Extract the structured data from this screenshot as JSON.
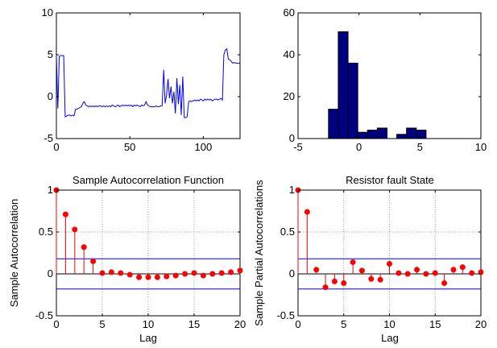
{
  "chart_data": [
    {
      "type": "line",
      "title": "",
      "xlabel": "",
      "ylabel": "",
      "xlim": [
        0,
        125
      ],
      "ylim": [
        -5,
        10
      ],
      "x_ticks": [
        "0",
        "50",
        "100"
      ],
      "y_ticks": [
        "-5",
        "0",
        "5",
        "10"
      ],
      "line_color": "#0000ff",
      "series": [
        {
          "x": [
            0,
            1,
            2,
            3,
            4,
            5,
            6,
            7,
            8,
            9,
            10,
            11,
            12,
            13,
            14,
            15,
            16,
            17,
            18,
            19,
            20,
            21,
            22,
            23,
            24,
            25,
            26,
            27,
            28,
            29,
            30,
            31,
            32,
            33,
            34,
            35,
            36,
            37,
            38,
            39,
            40,
            41,
            42,
            43,
            44,
            45,
            46,
            47,
            48,
            49,
            50,
            51,
            52,
            53,
            54,
            55,
            56,
            57,
            58,
            59,
            60,
            61,
            62,
            63,
            64,
            65,
            66,
            67,
            68,
            69,
            70,
            71,
            72,
            73,
            74,
            75,
            76,
            77,
            78,
            79,
            80,
            81,
            82,
            83,
            84,
            85,
            86,
            87,
            88,
            89,
            90,
            91,
            92,
            93,
            94,
            95,
            96,
            97,
            98,
            99,
            100,
            101,
            102,
            103,
            104,
            105,
            106,
            107,
            108,
            109,
            110,
            111,
            112,
            113,
            114,
            115,
            116,
            117,
            118,
            119,
            120,
            121,
            122,
            123,
            124,
            125
          ],
          "y": [
            5,
            -1.4,
            4.8,
            4.9,
            4.9,
            4.9,
            -2.4,
            -2.3,
            -2.2,
            -2.2,
            -2.3,
            -2.2,
            -2.3,
            -1.5,
            -1.5,
            -1.4,
            -1.3,
            -1.2,
            -0.8,
            -0.6,
            -1.0,
            -1.1,
            -1.2,
            -1.1,
            -1.2,
            -1.1,
            -1.2,
            -1.1,
            -1.2,
            -1.1,
            -1.1,
            -1.2,
            -1.1,
            -1.2,
            -1.1,
            -1.2,
            -1.1,
            -1.2,
            -1.0,
            -1.1,
            -1.2,
            -1.1,
            -1.0,
            -1.2,
            -1.1,
            -1.0,
            -1.1,
            -1.0,
            -1.1,
            -1.0,
            -1.1,
            -1.0,
            -1.2,
            -1.0,
            -1.1,
            -1.0,
            -1.1,
            -1.2,
            -1.0,
            -1.1,
            -1.0,
            -0.6,
            -1.0,
            -1.1,
            -1.2,
            -1.2,
            -1.2,
            -1.2,
            -1.1,
            -1.2,
            -1.2,
            -1.1,
            -1.1,
            3.2,
            -0.8,
            0.2,
            2.1,
            -0.2,
            1.2,
            -0.8,
            0.6,
            -2.0,
            2.2,
            -0.9,
            1.4,
            -2.2,
            2.4,
            -2.5,
            -2.5,
            -2.4,
            -0.6,
            -0.5,
            -0.6,
            -0.5,
            -0.4,
            -0.5,
            -0.4,
            -0.5,
            -0.3,
            -0.4,
            -0.5,
            -0.3,
            -0.4,
            -0.3,
            -0.4,
            -0.3,
            -0.5,
            -0.4,
            -0.3,
            -0.3,
            -0.4,
            -0.3,
            -0.2,
            -0.4,
            5.0,
            5.6,
            5.7,
            4.5,
            4.4,
            4.2,
            4.0,
            4.1,
            4.0,
            4.0,
            4.0,
            4.0
          ]
        }
      ]
    },
    {
      "type": "bar",
      "title": "",
      "xlabel": "",
      "ylabel": "",
      "xlim": [
        -5,
        10
      ],
      "ylim": [
        0,
        60
      ],
      "x_ticks": [
        "-5",
        "0",
        "5",
        "10"
      ],
      "y_ticks": [
        "0",
        "20",
        "40",
        "60"
      ],
      "bar_color": "#000080",
      "bin_width": 0.8,
      "bin_centers": [
        -2.1,
        -1.3,
        -0.5,
        0.3,
        1.1,
        1.9,
        2.7,
        3.5,
        4.3,
        5.1
      ],
      "values": [
        14,
        51,
        36,
        3,
        4,
        5,
        0,
        2,
        5,
        4
      ]
    },
    {
      "type": "scatter",
      "title": "Sample Autocorrelation Function",
      "xlabel": "Lag",
      "ylabel": "Sample Autocorrelation",
      "xlim": [
        0,
        20
      ],
      "ylim": [
        -0.5,
        1
      ],
      "x_ticks": [
        "0",
        "5",
        "10",
        "15",
        "20"
      ],
      "y_ticks": [
        "-0.5",
        "0",
        "0.5",
        "1"
      ],
      "confidence_bound": 0.18,
      "stem_color": "#ff0000",
      "bound_color": "#0000ff",
      "x": [
        0,
        1,
        2,
        3,
        4,
        5,
        6,
        7,
        8,
        9,
        10,
        11,
        12,
        13,
        14,
        15,
        16,
        17,
        18,
        19,
        20
      ],
      "y": [
        1.0,
        0.71,
        0.53,
        0.32,
        0.15,
        0.01,
        0.02,
        0.01,
        -0.01,
        -0.04,
        -0.04,
        -0.04,
        -0.03,
        -0.02,
        0.0,
        0.01,
        -0.02,
        0.0,
        0.01,
        0.02,
        0.04
      ]
    },
    {
      "type": "scatter",
      "title": "Resistor fault State",
      "xlabel": "Lag",
      "ylabel": "Sample Partial Autocorrelations",
      "xlim": [
        0,
        20
      ],
      "ylim": [
        -0.5,
        1
      ],
      "x_ticks": [
        "0",
        "5",
        "10",
        "15",
        "20"
      ],
      "y_ticks": [
        "-0.5",
        "0",
        "0.5",
        "1"
      ],
      "confidence_bound": 0.18,
      "stem_color": "#ff0000",
      "bound_color": "#0000ff",
      "x": [
        0,
        1,
        2,
        3,
        4,
        5,
        6,
        7,
        8,
        9,
        10,
        11,
        12,
        13,
        14,
        15,
        16,
        17,
        18,
        19,
        20
      ],
      "y": [
        1.0,
        0.74,
        0.05,
        -0.16,
        -0.09,
        -0.11,
        0.14,
        0.04,
        -0.06,
        -0.07,
        0.12,
        0.01,
        0.0,
        0.05,
        0.0,
        0.01,
        -0.11,
        0.05,
        0.08,
        0.01,
        0.02
      ]
    }
  ]
}
